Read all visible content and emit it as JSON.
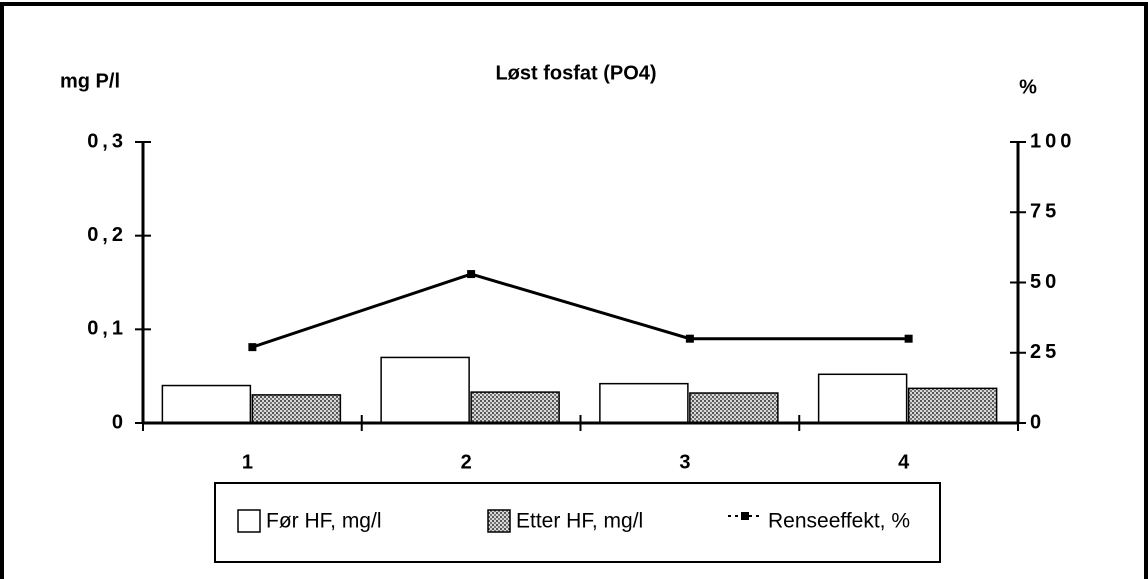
{
  "chart_data": {
    "type": "bar",
    "title": "Løst fosfat (PO4)",
    "y_label": "mg P/l",
    "y2_label": "%",
    "categories": [
      "1",
      "2",
      "3",
      "4"
    ],
    "series": [
      {
        "name": "Før HF, mg/l",
        "color": "#ffffff",
        "values": [
          0.04,
          0.07,
          0.042,
          0.052
        ]
      },
      {
        "name": "Etter HF, mg/l",
        "color": "#999999",
        "values": [
          0.03,
          0.033,
          0.032,
          0.037
        ]
      },
      {
        "name": "Renseeffekt, %",
        "type": "line",
        "axis": "y2",
        "color": "#000000",
        "values": [
          27,
          53,
          30,
          30
        ]
      }
    ],
    "ylim": [
      0,
      0.3
    ],
    "yticks": [
      0,
      {
        "value": 0.1,
        "label": "0,1"
      },
      {
        "value": 0.2,
        "label": "0,2"
      },
      {
        "value": 0.3,
        "label": "0,3"
      }
    ],
    "y2lim": [
      0,
      100
    ],
    "y2ticks": [
      0,
      25,
      50,
      75,
      100
    ],
    "legend": "bottom"
  }
}
